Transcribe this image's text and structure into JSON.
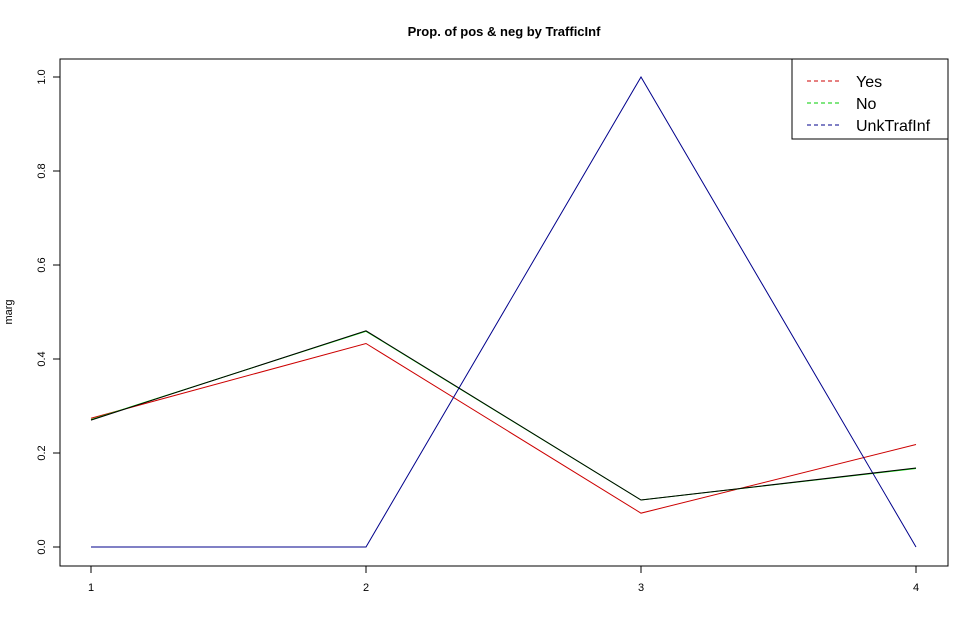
{
  "chart_data": {
    "type": "line",
    "title": "Prop. of pos & neg by TrafficInf",
    "xlabel": "",
    "ylabel": "marg",
    "x": [
      1,
      2,
      3,
      4
    ],
    "xlim": [
      1,
      4
    ],
    "ylim": [
      0,
      1
    ],
    "x_ticks": [
      "1",
      "2",
      "3",
      "4"
    ],
    "y_ticks": [
      "0.0",
      "0.2",
      "0.4",
      "0.6",
      "0.8",
      "1.0"
    ],
    "grid": false,
    "legend_position": "top-right",
    "series": [
      {
        "name": "Yes",
        "color": "#cc0000",
        "values": [
          0.274,
          0.433,
          0.072,
          0.218
        ]
      },
      {
        "name": "No",
        "color": "#00cc00",
        "values": [
          0.271,
          0.459,
          0.1,
          0.167
        ]
      },
      {
        "name": "UnkTrafInf",
        "color": "#00008b",
        "values": [
          0.0,
          0.0,
          1.0,
          0.0
        ]
      }
    ],
    "overlay_series": {
      "color": "#000000",
      "values": [
        0.27,
        0.46,
        0.1,
        0.168
      ]
    }
  }
}
